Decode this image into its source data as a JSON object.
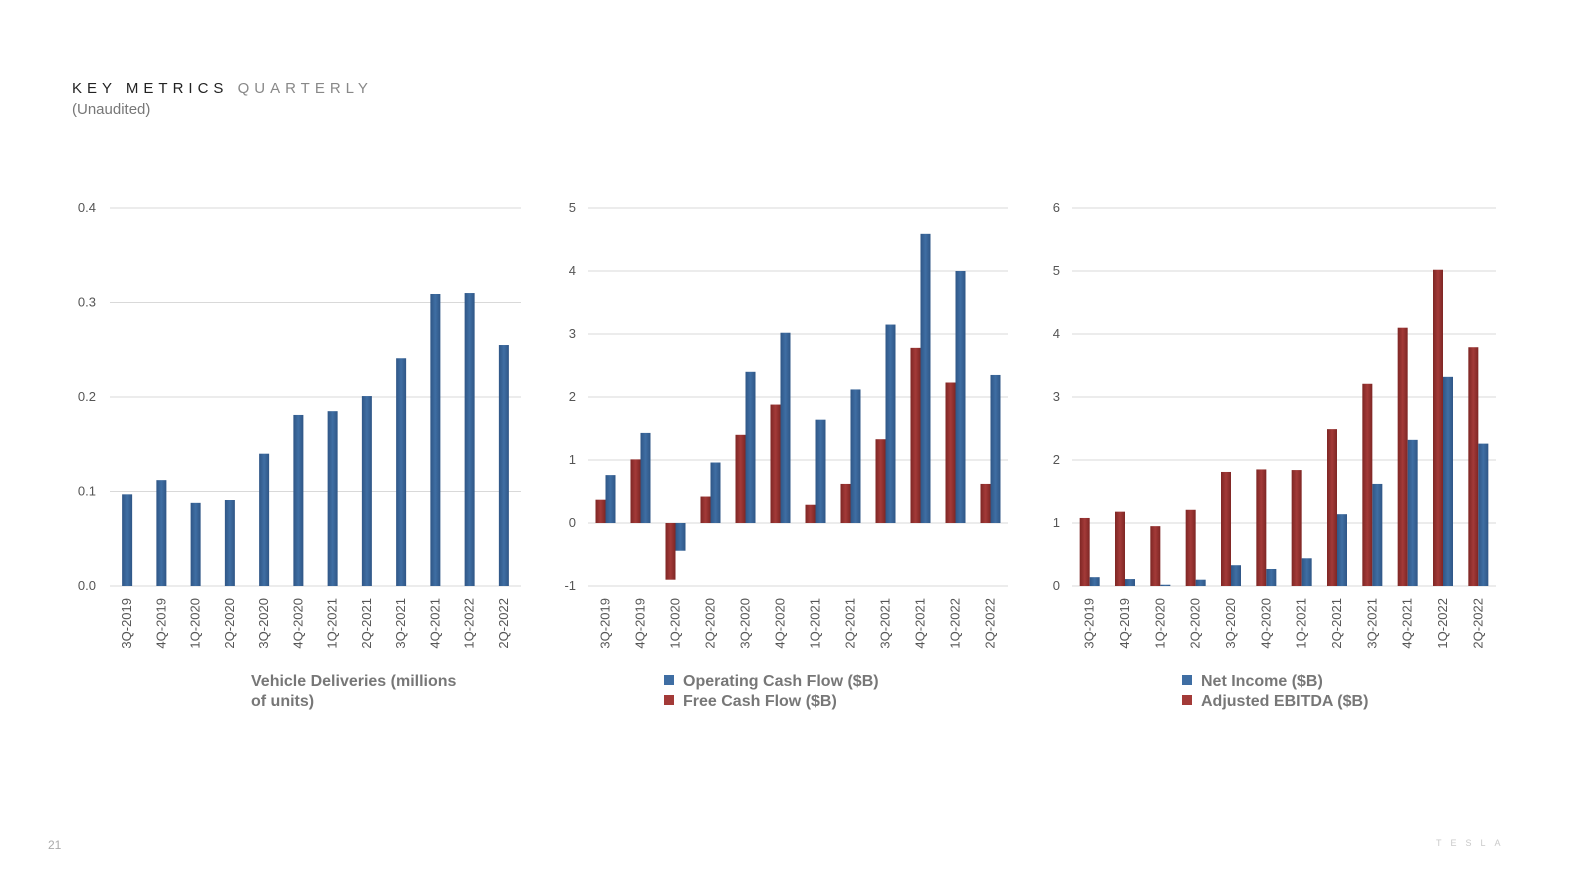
{
  "header": {
    "title": "KEY METRICS",
    "title_sub": "QUARTERLY",
    "subtitle": "(Unaudited)"
  },
  "footer": {
    "page_number": "21",
    "logo_text": "TESLA"
  },
  "colors": {
    "blue": "#3f6ea3",
    "red": "#a33a38",
    "grid": "#d9d9d9"
  },
  "chart_data": [
    {
      "type": "bar",
      "categories": [
        "3Q-2019",
        "4Q-2019",
        "1Q-2020",
        "2Q-2020",
        "3Q-2020",
        "4Q-2020",
        "1Q-2021",
        "2Q-2021",
        "3Q-2021",
        "4Q-2021",
        "1Q-2022",
        "2Q-2022"
      ],
      "series": [
        {
          "name": "Vehicle Deliveries (millions of units)",
          "color": "blue",
          "values": [
            0.097,
            0.112,
            0.088,
            0.091,
            0.14,
            0.181,
            0.185,
            0.201,
            0.241,
            0.309,
            0.31,
            0.255
          ]
        }
      ],
      "ylim": [
        0,
        0.4
      ],
      "yticks": [
        "0.0",
        "0.1",
        "0.2",
        "0.3",
        "0.4"
      ],
      "grid": true,
      "legend_lines": [
        "Vehicle Deliveries (millions",
        "of units)"
      ]
    },
    {
      "type": "bar",
      "categories": [
        "3Q-2019",
        "4Q-2019",
        "1Q-2020",
        "2Q-2020",
        "3Q-2020",
        "4Q-2020",
        "1Q-2021",
        "2Q-2021",
        "3Q-2021",
        "4Q-2021",
        "1Q-2022",
        "2Q-2022"
      ],
      "series": [
        {
          "name": "Operating Cash Flow ($B)",
          "color": "blue",
          "values": [
            0.76,
            1.43,
            -0.44,
            0.96,
            2.4,
            3.02,
            1.64,
            2.12,
            3.15,
            4.59,
            4.0,
            2.35
          ]
        },
        {
          "name": "Free Cash Flow ($B)",
          "color": "red",
          "values": [
            0.37,
            1.01,
            -0.9,
            0.42,
            1.4,
            1.88,
            0.29,
            0.62,
            1.33,
            2.78,
            2.23,
            0.62
          ]
        }
      ],
      "ylim": [
        -1,
        5
      ],
      "yticks": [
        "-1",
        "0",
        "1",
        "2",
        "3",
        "4",
        "5"
      ],
      "grid": true,
      "legend_placement": "bottom"
    },
    {
      "type": "bar",
      "categories": [
        "3Q-2019",
        "4Q-2019",
        "1Q-2020",
        "2Q-2020",
        "3Q-2020",
        "4Q-2020",
        "1Q-2021",
        "2Q-2021",
        "3Q-2021",
        "4Q-2021",
        "1Q-2022",
        "2Q-2022"
      ],
      "series": [
        {
          "name": "Net Income ($B)",
          "color": "blue",
          "values": [
            0.14,
            0.11,
            0.02,
            0.1,
            0.33,
            0.27,
            0.44,
            1.14,
            1.62,
            2.32,
            3.32,
            2.26
          ]
        },
        {
          "name": "Adjusted EBITDA ($B)",
          "color": "red",
          "values": [
            1.08,
            1.18,
            0.95,
            1.21,
            1.81,
            1.85,
            1.84,
            2.49,
            3.21,
            4.1,
            5.02,
            3.79
          ]
        }
      ],
      "ylim": [
        0,
        6
      ],
      "yticks": [
        "0",
        "1",
        "2",
        "3",
        "4",
        "5",
        "6"
      ],
      "grid": true,
      "legend_placement": "bottom"
    }
  ]
}
